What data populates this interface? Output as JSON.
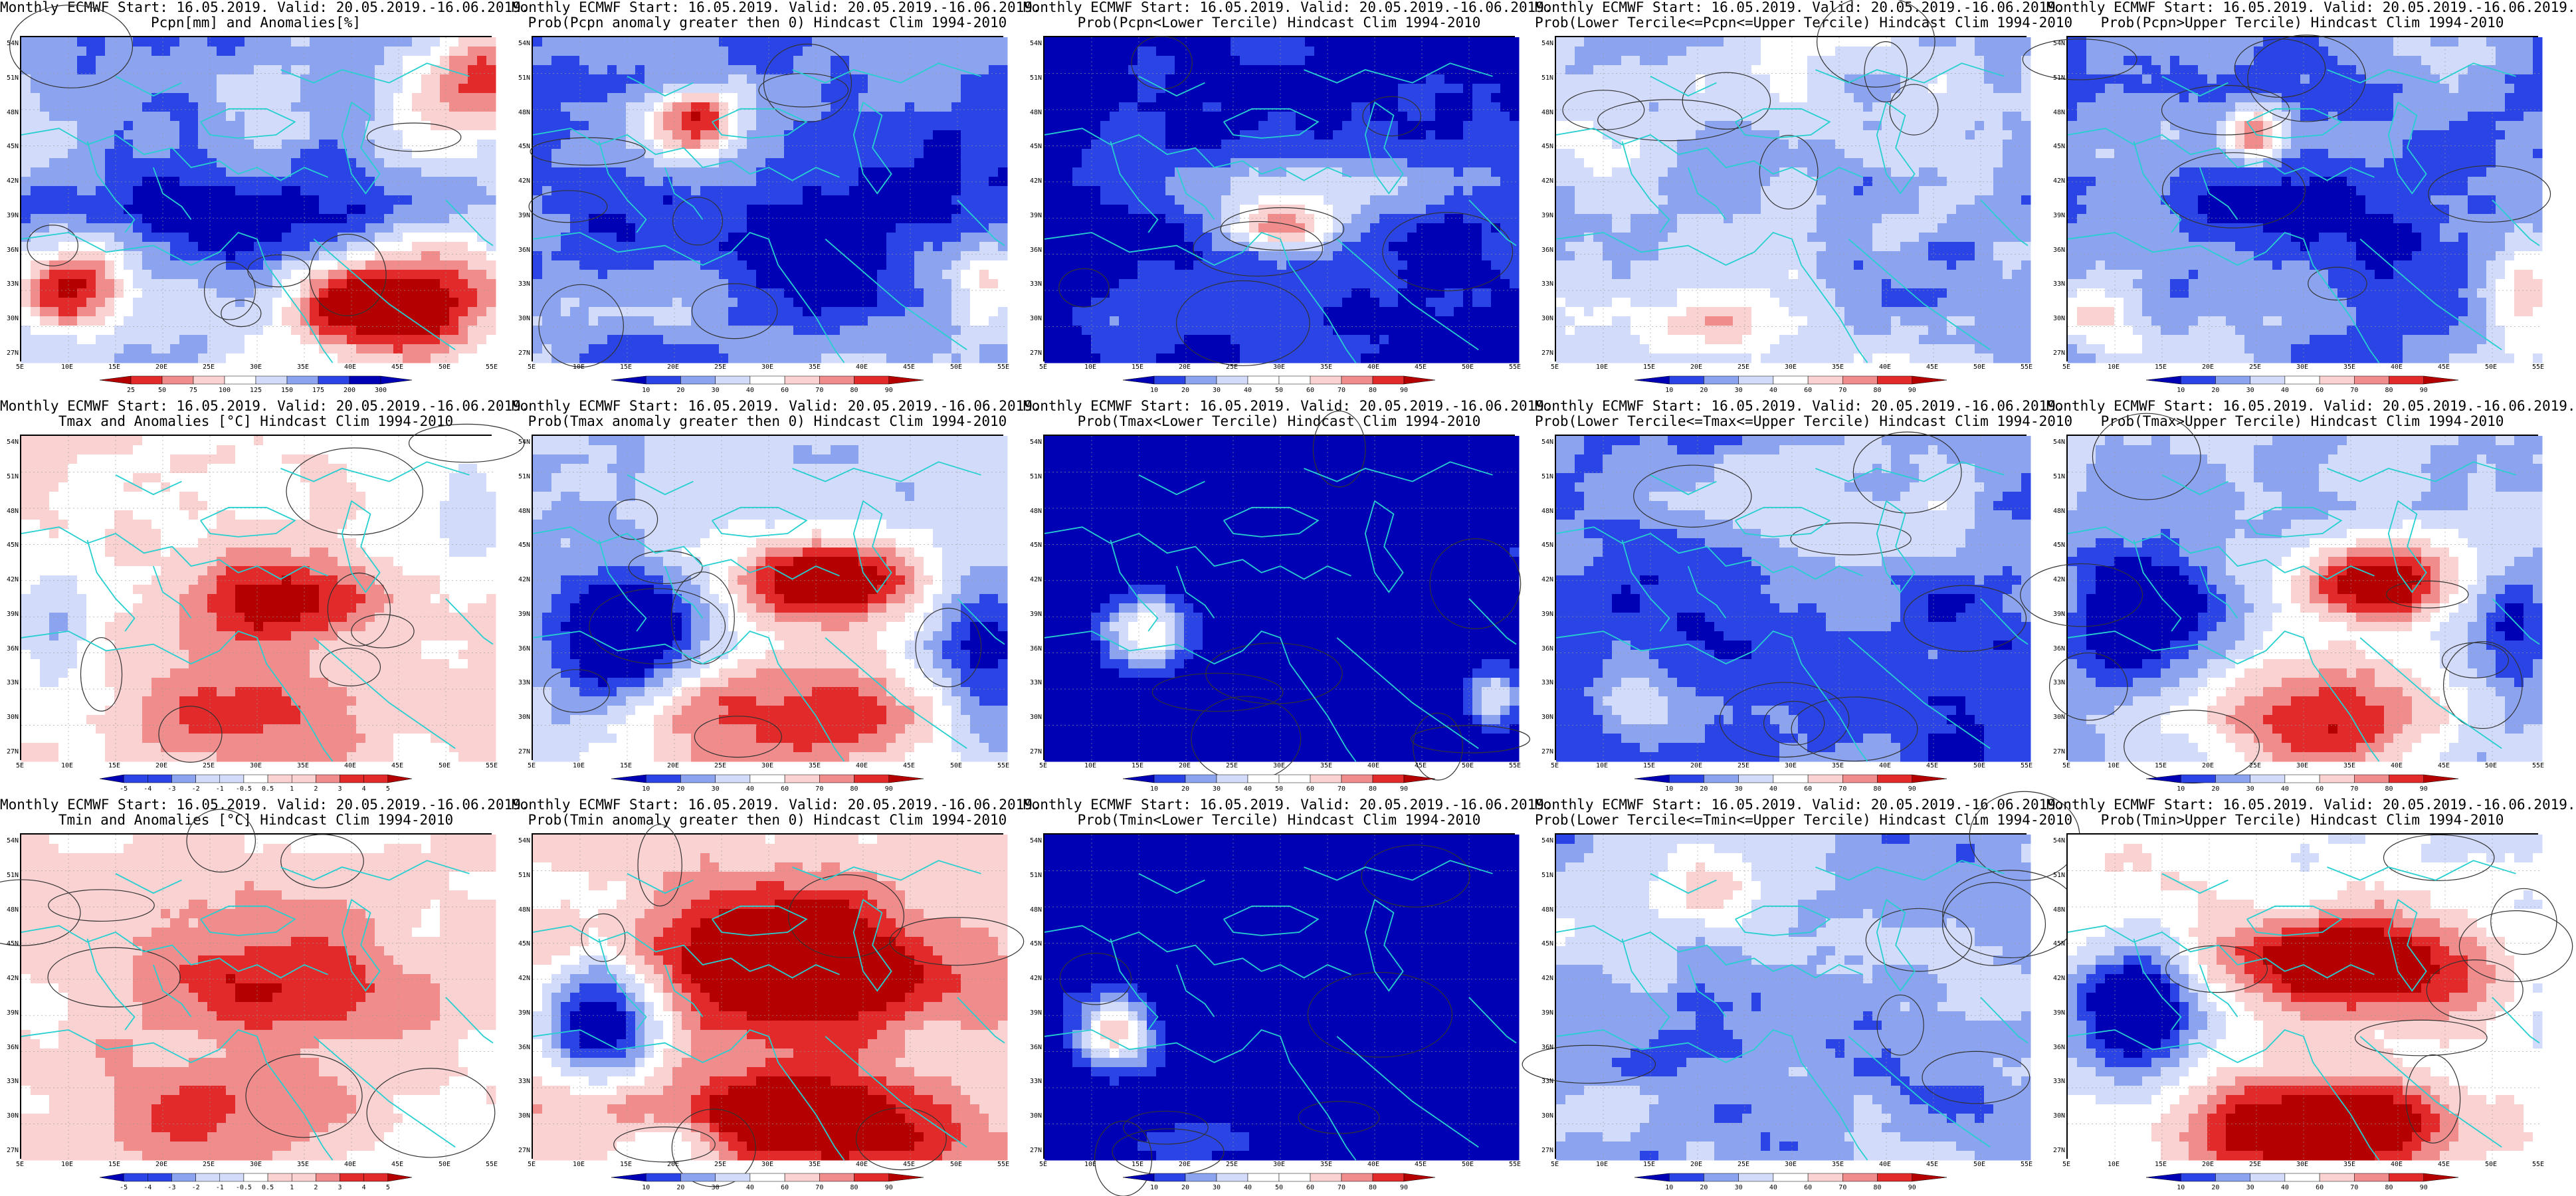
{
  "panels": [
    {
      "title1": "Monthly ECMWF Start: 16.05.2019. Valid: 20.05.2019.-16.06.2019.",
      "title2": "Pcpn[mm] and Anomalies[%]",
      "cbar_kind": "pcp",
      "cbar_labels": [
        "25",
        "50",
        "75",
        "100",
        "125",
        "150",
        "175",
        "200",
        "300"
      ],
      "field": "pcp_anom"
    },
    {
      "title1": "Monthly ECMWF Start: 16.05.2019. Valid: 20.05.2019.-16.06.2019.",
      "title2": "Prob(Pcpn anomaly greater then 0) Hindcast Clim 1994-2010",
      "cbar_kind": "prob",
      "cbar_labels": [
        "10",
        "20",
        "30",
        "40",
        "60",
        "70",
        "80",
        "90"
      ],
      "field": "pcp_pos"
    },
    {
      "title1": "Monthly ECMWF Start: 16.05.2019. Valid: 20.05.2019.-16.06.2019.",
      "title2": "Prob(Pcpn<Lower Tercile) Hindcast Clim 1994-2010",
      "cbar_kind": "prob",
      "cbar_labels": [
        "10",
        "20",
        "30",
        "40",
        "50",
        "60",
        "70",
        "80",
        "90"
      ],
      "field": "pcp_low"
    },
    {
      "title1": "Monthly ECMWF Start: 16.05.2019. Valid: 20.05.2019.-16.06.2019.",
      "title2": "Prob(Lower Tercile<=Pcpn<=Upper Tercile) Hindcast Clim 1994-2010",
      "cbar_kind": "prob",
      "cbar_labels": [
        "10",
        "20",
        "30",
        "40",
        "60",
        "70",
        "80",
        "90"
      ],
      "field": "pcp_mid"
    },
    {
      "title1": "Monthly ECMWF Start: 16.05.2019. Valid: 20.05.2019.-16.06.2019.",
      "title2": "Prob(Pcpn>Upper Tercile) Hindcast Clim 1994-2010",
      "cbar_kind": "prob",
      "cbar_labels": [
        "10",
        "20",
        "30",
        "40",
        "60",
        "70",
        "80",
        "90"
      ],
      "field": "pcp_high"
    },
    {
      "title1": "Monthly ECMWF Start: 16.05.2019. Valid: 20.05.2019.-16.06.2019.",
      "title2": "Tmax and Anomalies [°C] Hindcast Clim 1994-2010",
      "cbar_kind": "anom",
      "cbar_labels": [
        "-5",
        "-4",
        "-3",
        "-2",
        "-1",
        "-0.5",
        "0.5",
        "1",
        "2",
        "3",
        "4",
        "5"
      ],
      "field": "t_anom"
    },
    {
      "title1": "Monthly ECMWF Start: 16.05.2019. Valid: 20.05.2019.-16.06.2019.",
      "title2": "Prob(Tmax anomaly greater then 0) Hindcast Clim 1994-2010",
      "cbar_kind": "prob",
      "cbar_labels": [
        "10",
        "20",
        "30",
        "40",
        "60",
        "70",
        "80",
        "90"
      ],
      "field": "t_pos"
    },
    {
      "title1": "Monthly ECMWF Start: 16.05.2019. Valid: 20.05.2019.-16.06.2019.",
      "title2": "Prob(Tmax<Lower Tercile) Hindcast Clim 1994-2010",
      "cbar_kind": "prob",
      "cbar_labels": [
        "10",
        "20",
        "30",
        "40",
        "50",
        "60",
        "70",
        "80",
        "90"
      ],
      "field": "t_low"
    },
    {
      "title1": "Monthly ECMWF Start: 16.05.2019. Valid: 20.05.2019.-16.06.2019.",
      "title2": "Prob(Lower Tercile<=Tmax<=Upper Tercile) Hindcast Clim 1994-2010",
      "cbar_kind": "prob",
      "cbar_labels": [
        "10",
        "20",
        "30",
        "40",
        "60",
        "70",
        "80",
        "90"
      ],
      "field": "t_mid"
    },
    {
      "title1": "Monthly ECMWF Start: 16.05.2019. Valid: 20.05.2019.-16.06.2019.",
      "title2": "Prob(Tmax>Upper Tercile) Hindcast Clim 1994-2010",
      "cbar_kind": "prob",
      "cbar_labels": [
        "10",
        "20",
        "30",
        "40",
        "60",
        "70",
        "80",
        "90"
      ],
      "field": "t_high"
    },
    {
      "title1": "Monthly ECMWF Start: 16.05.2019. Valid: 20.05.2019.-16.06.2019.",
      "title2": "Tmin and Anomalies [°C] Hindcast Clim 1994-2010",
      "cbar_kind": "anom",
      "cbar_labels": [
        "-5",
        "-4",
        "-3",
        "-2",
        "-1",
        "-0.5",
        "0.5",
        "1",
        "2",
        "3",
        "4",
        "5"
      ],
      "field": "n_anom"
    },
    {
      "title1": "Monthly ECMWF Start: 16.05.2019. Valid: 20.05.2019.-16.06.2019.",
      "title2": "Prob(Tmin anomaly greater then 0) Hindcast Clim 1994-2010",
      "cbar_kind": "prob",
      "cbar_labels": [
        "10",
        "20",
        "30",
        "40",
        "60",
        "70",
        "80",
        "90"
      ],
      "field": "n_pos"
    },
    {
      "title1": "Monthly ECMWF Start: 16.05.2019. Valid: 20.05.2019.-16.06.2019.",
      "title2": "Prob(Tmin<Lower Tercile) Hindcast Clim 1994-2010",
      "cbar_kind": "prob",
      "cbar_labels": [
        "10",
        "20",
        "30",
        "40",
        "50",
        "60",
        "70",
        "80",
        "90"
      ],
      "field": "n_low"
    },
    {
      "title1": "Monthly ECMWF Start: 16.05.2019. Valid: 20.05.2019.-16.06.2019.",
      "title2": "Prob(Lower Tercile<=Tmin<=Upper Tercile) Hindcast Clim 1994-2010",
      "cbar_kind": "prob",
      "cbar_labels": [
        "10",
        "20",
        "30",
        "40",
        "60",
        "70",
        "80",
        "90"
      ],
      "field": "n_mid"
    },
    {
      "title1": "Monthly ECMWF Start: 16.05.2019. Valid: 20.05.2019.-16.06.2019.",
      "title2": "Prob(Tmin>Upper Tercile) Hindcast Clim 1994-2010",
      "cbar_kind": "prob",
      "cbar_labels": [
        "10",
        "20",
        "30",
        "40",
        "60",
        "70",
        "80",
        "90"
      ],
      "field": "n_high"
    }
  ],
  "lat_labels": [
    "54N",
    "51N",
    "48N",
    "45N",
    "42N",
    "39N",
    "36N",
    "33N",
    "30N",
    "27N"
  ],
  "lon_labels": [
    "5E",
    "10E",
    "15E",
    "20E",
    "25E",
    "30E",
    "35E",
    "40E",
    "45E",
    "50E",
    "55E"
  ],
  "colors": {
    "blue_dark": "#0000b4",
    "blue_mid": "#2a44e6",
    "blue_light": "#8ca4f0",
    "blue_pale": "#d2dcfa",
    "white": "#ffffff",
    "red_pale": "#fad2d2",
    "red_light": "#f08c8c",
    "red_mid": "#e22a2a",
    "red_dark": "#b40000",
    "coast": "#27cfd0",
    "contour": "#333333"
  }
}
